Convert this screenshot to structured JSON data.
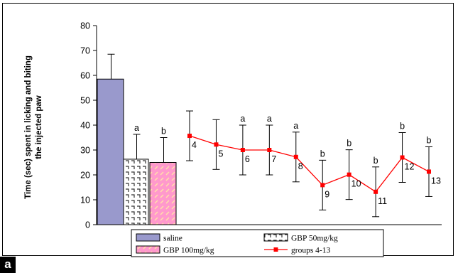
{
  "panel_label": "a",
  "chart_data": {
    "type": "bar",
    "ylabel": "Time (sec) spent in licking and biting\nthe injected paw",
    "xlabel": "",
    "ylim": [
      0,
      80
    ],
    "yticks": [
      0,
      10,
      20,
      30,
      40,
      50,
      60,
      70,
      80
    ],
    "grid": false,
    "legend_position": "bottom",
    "bars": [
      {
        "name": "saline",
        "value": 58.5,
        "error": 10,
        "sig": "",
        "color": "#9999cc",
        "pattern": "solid"
      },
      {
        "name": "GBP 50mg/kg",
        "value": 26.3,
        "error": 10,
        "sig": "a",
        "color": "#ffffff",
        "pattern": "dotted-white"
      },
      {
        "name": "GBP 100mg/kg",
        "value": 25,
        "error": 10,
        "sig": "b",
        "color": "#ff99cc",
        "pattern": "hatched-pink"
      }
    ],
    "series": [
      {
        "name": "groups 4-13",
        "color": "#ff0000",
        "points": [
          {
            "group": "4",
            "value": 35.7,
            "error": 10,
            "sig": ""
          },
          {
            "group": "5",
            "value": 32.2,
            "error": 10,
            "sig": ""
          },
          {
            "group": "6",
            "value": 30,
            "error": 10,
            "sig": "a"
          },
          {
            "group": "7",
            "value": 30,
            "error": 10,
            "sig": "a"
          },
          {
            "group": "8",
            "value": 27.2,
            "error": 10,
            "sig": "a"
          },
          {
            "group": "9",
            "value": 15.9,
            "error": 10,
            "sig": "b"
          },
          {
            "group": "10",
            "value": 20.1,
            "error": 10,
            "sig": "b"
          },
          {
            "group": "11",
            "value": 13.2,
            "error": 10,
            "sig": "b"
          },
          {
            "group": "12",
            "value": 27,
            "error": 10,
            "sig": "b"
          },
          {
            "group": "13",
            "value": 21.3,
            "error": 10,
            "sig": "b"
          }
        ]
      }
    ],
    "legend": [
      "saline",
      "GBP 50mg/kg",
      "GBP 100mg/kg",
      "groups 4-13"
    ]
  }
}
